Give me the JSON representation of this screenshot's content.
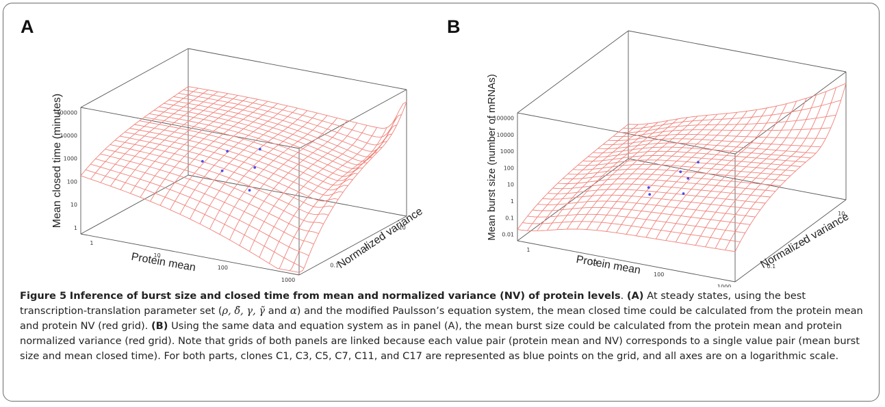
{
  "panels": [
    {
      "letter": "A",
      "zlabel": "Mean closed time (minutes)",
      "xlabel": "Protein mean",
      "ylabel": "Normalized variance",
      "z_ticks": [
        "100000",
        "10000",
        "1000",
        "100",
        "10",
        "1"
      ],
      "x_ticks": [
        "1",
        "10",
        "100",
        "1000"
      ],
      "y_ticks": [
        "0.1",
        "1",
        "10"
      ],
      "surface_color": "#f08078",
      "points_color": "#4a4af0"
    },
    {
      "letter": "B",
      "zlabel": "Mean burst size (number of mRNAs)",
      "xlabel": "Protein mean",
      "ylabel": "Normalized variance",
      "z_ticks": [
        "100000",
        "10000",
        "1000",
        "100",
        "10",
        "1",
        "0.1",
        "0.01"
      ],
      "x_ticks": [
        "1",
        "10",
        "100",
        "1000"
      ],
      "y_ticks": [
        "0.1",
        "1",
        "10"
      ],
      "surface_color": "#f08078",
      "points_color": "#4a4af0"
    }
  ],
  "caption": {
    "figure_label": "Figure 5",
    "title": "Inference of burst size and closed time from mean and normalized variance (NV) of protein levels",
    "part_a_label": "(A)",
    "part_a_text_1": "At steady states, using the best transcription-translation parameter set (",
    "symbols": "ρ, δ̃, γ, γ̃",
    "part_a_text_2": " and ",
    "alpha": "α",
    "part_a_text_3": ") and the modified Paulsson’s equation system, the mean closed time could be calculated from the protein mean and protein NV (red grid).",
    "part_b_label": "(B)",
    "part_b_text": "Using the same data and equation system as in panel (A), the mean burst size could be calculated from the protein mean and protein normalized variance (red grid). Note that grids of both panels are linked because each value pair (protein mean and NV) corresponds to a single value pair (mean burst size and mean closed time). For both parts, clones C1, C3, C5, C7, C11, and C17 are represented as blue points on the grid, and all axes are on a logarithmic scale."
  }
}
